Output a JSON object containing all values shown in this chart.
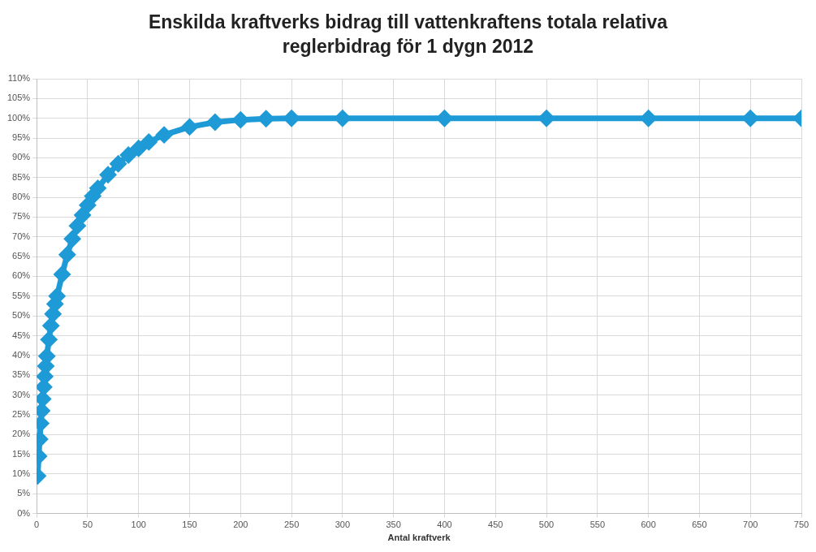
{
  "chart_data": {
    "type": "line",
    "title": "Enskilda kraftverks bidrag till vattenkraftens totala relativa reglerbidrag för 1 dygn 2012",
    "xlabel": "Antal kraftverk",
    "x": [
      1,
      2,
      3,
      4,
      5,
      6,
      7,
      8,
      9,
      10,
      12,
      14,
      16,
      18,
      20,
      25,
      30,
      35,
      40,
      45,
      50,
      55,
      60,
      70,
      80,
      90,
      100,
      110,
      125,
      150,
      175,
      200,
      225,
      250,
      300,
      400,
      500,
      600,
      700,
      750
    ],
    "series": [
      {
        "color": "#1e9bd7",
        "values": [
          9.5,
          14.5,
          18.8,
          22.8,
          26,
          29,
          32,
          34.7,
          37.3,
          39.8,
          44,
          47.5,
          50.5,
          53,
          55,
          60.5,
          65.5,
          69.5,
          72.8,
          75.5,
          78,
          80.3,
          82.3,
          85.7,
          88.5,
          90.7,
          92.4,
          94,
          95.8,
          97.8,
          99,
          99.6,
          99.9,
          100,
          100,
          100,
          100,
          100,
          100,
          100
        ]
      }
    ],
    "xlim": [
      0,
      750
    ],
    "xticks": [
      0,
      50,
      100,
      150,
      200,
      250,
      300,
      350,
      400,
      450,
      500,
      550,
      600,
      650,
      700,
      750
    ],
    "ylim": [
      0,
      110
    ],
    "yticks": [
      {
        "value": 0,
        "label": "0%"
      },
      {
        "value": 5,
        "label": "5%"
      },
      {
        "value": 10,
        "label": "10%"
      },
      {
        "value": 15,
        "label": "15%"
      },
      {
        "value": 20,
        "label": "20%"
      },
      {
        "value": 25,
        "label": "25%"
      },
      {
        "value": 30,
        "label": "30%"
      },
      {
        "value": 35,
        "label": "35%"
      },
      {
        "value": 40,
        "label": "40%"
      },
      {
        "value": 45,
        "label": "45%"
      },
      {
        "value": 50,
        "label": "50%"
      },
      {
        "value": 55,
        "label": "55%"
      },
      {
        "value": 60,
        "label": "60%"
      },
      {
        "value": 65,
        "label": "65%"
      },
      {
        "value": 70,
        "label": "70%"
      },
      {
        "value": 75,
        "label": "75%"
      },
      {
        "value": 80,
        "label": "80%"
      },
      {
        "value": 85,
        "label": "85%"
      },
      {
        "value": 90,
        "label": "90%"
      },
      {
        "value": 95,
        "label": "95%"
      },
      {
        "value": 100,
        "label": "100%"
      },
      {
        "value": 105,
        "label": "105%"
      },
      {
        "value": 110,
        "label": "110%"
      }
    ],
    "grid": true,
    "legend": false,
    "marker": "diamond",
    "line_style": "solid"
  }
}
